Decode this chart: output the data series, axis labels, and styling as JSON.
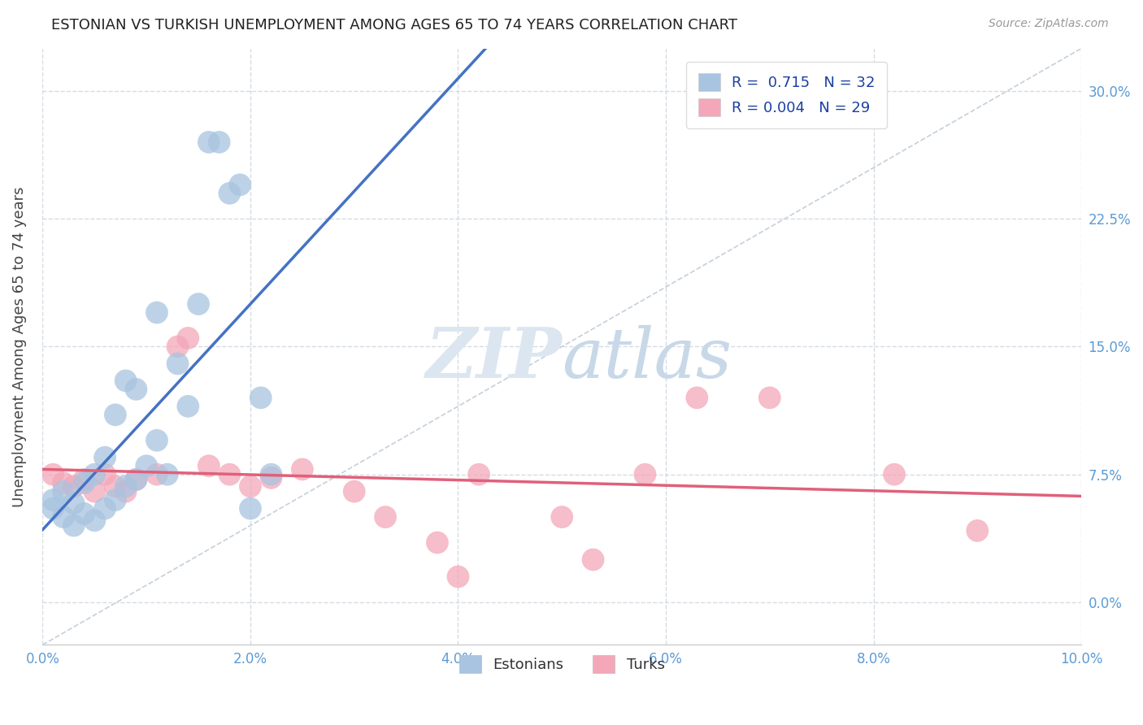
{
  "title": "ESTONIAN VS TURKISH UNEMPLOYMENT AMONG AGES 65 TO 74 YEARS CORRELATION CHART",
  "source": "Source: ZipAtlas.com",
  "ylabel": "Unemployment Among Ages 65 to 74 years",
  "xlim": [
    0.0,
    0.1
  ],
  "ylim": [
    -0.025,
    0.325
  ],
  "xticks": [
    0.0,
    0.02,
    0.04,
    0.06,
    0.08,
    0.1
  ],
  "yticks": [
    0.0,
    0.075,
    0.15,
    0.225,
    0.3
  ],
  "xticklabels": [
    "0.0%",
    "2.0%",
    "4.0%",
    "6.0%",
    "8.0%",
    "10.0%"
  ],
  "yticklabels": [
    "0.0%",
    "7.5%",
    "15.0%",
    "22.5%",
    "30.0%"
  ],
  "estonian_R": 0.715,
  "estonian_N": 32,
  "turkish_R": 0.004,
  "turkish_N": 29,
  "estonian_color": "#a8c4e0",
  "turkish_color": "#f4a7b9",
  "estonian_line_color": "#4472c4",
  "turkish_line_color": "#e0607a",
  "identity_line_color": "#b8c4d0",
  "watermark_color": "#dce6f0",
  "background_color": "#ffffff",
  "grid_color": "#d0d8e0",
  "estonian_x": [
    0.001,
    0.001,
    0.002,
    0.002,
    0.003,
    0.003,
    0.004,
    0.004,
    0.005,
    0.005,
    0.006,
    0.006,
    0.007,
    0.007,
    0.008,
    0.008,
    0.009,
    0.009,
    0.01,
    0.011,
    0.011,
    0.012,
    0.013,
    0.014,
    0.015,
    0.016,
    0.017,
    0.018,
    0.019,
    0.02,
    0.021,
    0.022
  ],
  "estonian_y": [
    0.055,
    0.06,
    0.05,
    0.065,
    0.045,
    0.058,
    0.052,
    0.07,
    0.048,
    0.075,
    0.055,
    0.085,
    0.06,
    0.11,
    0.068,
    0.13,
    0.072,
    0.125,
    0.08,
    0.095,
    0.17,
    0.075,
    0.14,
    0.115,
    0.175,
    0.27,
    0.27,
    0.24,
    0.245,
    0.055,
    0.12,
    0.075
  ],
  "turkish_x": [
    0.001,
    0.002,
    0.003,
    0.004,
    0.005,
    0.006,
    0.007,
    0.008,
    0.009,
    0.011,
    0.013,
    0.014,
    0.016,
    0.018,
    0.02,
    0.022,
    0.025,
    0.03,
    0.033,
    0.038,
    0.04,
    0.042,
    0.05,
    0.053,
    0.058,
    0.063,
    0.07,
    0.082,
    0.09
  ],
  "turkish_y": [
    0.075,
    0.07,
    0.068,
    0.072,
    0.065,
    0.075,
    0.068,
    0.065,
    0.072,
    0.075,
    0.15,
    0.155,
    0.08,
    0.075,
    0.068,
    0.073,
    0.078,
    0.065,
    0.05,
    0.035,
    0.015,
    0.075,
    0.05,
    0.025,
    0.075,
    0.12,
    0.12,
    0.075,
    0.042
  ]
}
